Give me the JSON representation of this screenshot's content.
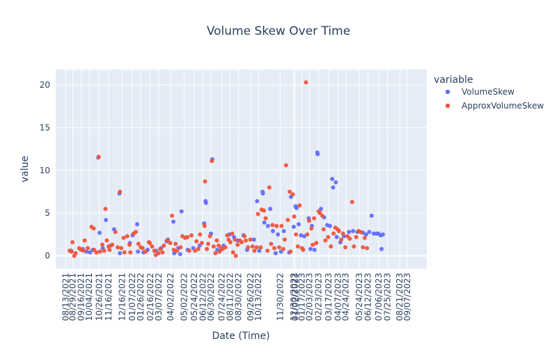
{
  "chart_data": {
    "type": "scatter",
    "title": "Volume Skew Over Time",
    "xlabel": "Date (Time)",
    "ylabel": "value",
    "ylim": [
      -1.5,
      21.8
    ],
    "xlim": [
      "2021-07-22",
      "2023-10-20"
    ],
    "yticks": [
      0,
      5,
      10,
      15,
      20
    ],
    "xticks": [
      "08/13/2021",
      "08/29/2021",
      "09/16/2021",
      "10/04/2021",
      "10/26/2021",
      "11/16/2021",
      "12/16/2021",
      "01/07/2022",
      "01/26/2022",
      "02/16/2022",
      "03/07/2022",
      "04/02/2022",
      "05/02/2022",
      "05/24/2022",
      "06/12/2022",
      "06/30/2022",
      "07/24/2022",
      "08/11/2022",
      "08/30/2022",
      "09/26/2022",
      "10/13/2022",
      "11/30/2022",
      "12/30/2022",
      "01/02/2023",
      "01/17/2023",
      "02/03/2023",
      "02/23/2023",
      "03/17/2023",
      "04/07/2023",
      "04/24/2023",
      "05/24/2023",
      "06/12/2023",
      "07/06/2023",
      "07/25/2023",
      "08/21/2023",
      "09/07/2023"
    ],
    "grid": true,
    "legend": {
      "title": "variable",
      "position": "top-right"
    },
    "series": [
      {
        "name": "VolumeSkew",
        "color": "#636efa",
        "points": [
          [
            "2021-08-25",
            0.6
          ],
          [
            "2021-09-20",
            0.8
          ],
          [
            "2021-09-28",
            0.5
          ],
          [
            "2021-10-06",
            0.4
          ],
          [
            "2021-10-12",
            0.7
          ],
          [
            "2021-10-24",
            11.5
          ],
          [
            "2021-10-27",
            2.7
          ],
          [
            "2021-11-03",
            0.9
          ],
          [
            "2021-11-10",
            4.2
          ],
          [
            "2021-11-20",
            1.2
          ],
          [
            "2021-11-28",
            3.1
          ],
          [
            "2021-12-10",
            7.3
          ],
          [
            "2021-12-11",
            0.3
          ],
          [
            "2022-01-02",
            1.5
          ],
          [
            "2022-01-08",
            2.4
          ],
          [
            "2022-01-18",
            3.7
          ],
          [
            "2022-01-20",
            0.5
          ],
          [
            "2022-02-01",
            0.4
          ],
          [
            "2022-02-10",
            0.7
          ],
          [
            "2022-03-01",
            0.6
          ],
          [
            "2022-03-12",
            0.9
          ],
          [
            "2022-03-24",
            1.7
          ],
          [
            "2022-03-27",
            1.9
          ],
          [
            "2022-04-08",
            4.0
          ],
          [
            "2022-04-10",
            0.3
          ],
          [
            "2022-04-19",
            0.9
          ],
          [
            "2022-04-23",
            0.2
          ],
          [
            "2022-04-26",
            5.2
          ],
          [
            "2022-05-10",
            0.7
          ],
          [
            "2022-05-22",
            0.9
          ],
          [
            "2022-06-05",
            1.2
          ],
          [
            "2022-06-15",
            3.8
          ],
          [
            "2022-06-18",
            6.4
          ],
          [
            "2022-06-19",
            6.2
          ],
          [
            "2022-06-30",
            2.6
          ],
          [
            "2022-07-03",
            11.3
          ],
          [
            "2022-07-14",
            0.7
          ],
          [
            "2022-07-20",
            0.6
          ],
          [
            "2022-07-28",
            1.2
          ],
          [
            "2022-08-10",
            2.5
          ],
          [
            "2022-08-20",
            2.2
          ],
          [
            "2022-08-28",
            1.8
          ],
          [
            "2022-09-10",
            2.4
          ],
          [
            "2022-09-18",
            0.7
          ],
          [
            "2022-10-03",
            1.9
          ],
          [
            "2022-10-10",
            6.4
          ],
          [
            "2022-10-15",
            0.6
          ],
          [
            "2022-10-22",
            7.5
          ],
          [
            "2022-10-23",
            7.3
          ],
          [
            "2022-10-26",
            3.9
          ],
          [
            "2022-11-03",
            3.5
          ],
          [
            "2022-11-08",
            5.5
          ],
          [
            "2022-11-14",
            2.9
          ],
          [
            "2022-11-20",
            0.3
          ],
          [
            "2022-11-25",
            2.5
          ],
          [
            "2022-12-02",
            0.5
          ],
          [
            "2022-12-08",
            2.9
          ],
          [
            "2022-12-20",
            0.4
          ],
          [
            "2022-12-24",
            6.9
          ],
          [
            "2022-12-30",
            3.4
          ],
          [
            "2023-01-03",
            5.8
          ],
          [
            "2023-01-05",
            5.6
          ],
          [
            "2023-01-10",
            3.7
          ],
          [
            "2023-01-15",
            2.4
          ],
          [
            "2023-01-22",
            2.3
          ],
          [
            "2023-02-01",
            4.4
          ],
          [
            "2023-02-05",
            0.8
          ],
          [
            "2023-02-08",
            3.5
          ],
          [
            "2023-02-14",
            0.7
          ],
          [
            "2023-02-20",
            12.1
          ],
          [
            "2023-02-21",
            11.9
          ],
          [
            "2023-02-28",
            5.5
          ],
          [
            "2023-03-07",
            4.5
          ],
          [
            "2023-03-14",
            3.6
          ],
          [
            "2023-03-20",
            3.5
          ],
          [
            "2023-03-25",
            9.0
          ],
          [
            "2023-03-27",
            8.0
          ],
          [
            "2023-04-02",
            8.6
          ],
          [
            "2023-04-04",
            2.2
          ],
          [
            "2023-04-12",
            1.6
          ],
          [
            "2023-04-20",
            2.3
          ],
          [
            "2023-05-01",
            2.8
          ],
          [
            "2023-05-10",
            2.9
          ],
          [
            "2023-05-20",
            2.8
          ],
          [
            "2023-06-01",
            2.7
          ],
          [
            "2023-06-08",
            2.5
          ],
          [
            "2023-06-15",
            2.8
          ],
          [
            "2023-06-20",
            4.7
          ],
          [
            "2023-06-25",
            2.6
          ],
          [
            "2023-07-01",
            2.6
          ],
          [
            "2023-07-05",
            2.6
          ],
          [
            "2023-07-10",
            2.4
          ],
          [
            "2023-07-12",
            0.8
          ],
          [
            "2023-07-15",
            2.5
          ]
        ]
      },
      {
        "name": "ApproxVolumeSkew",
        "color": "#ef553b",
        "points": [
          [
            "2021-08-22",
            0.6
          ],
          [
            "2021-08-26",
            0.5
          ],
          [
            "2021-08-28",
            1.6
          ],
          [
            "2021-09-01",
            0.0
          ],
          [
            "2021-09-04",
            0.3
          ],
          [
            "2021-09-12",
            0.9
          ],
          [
            "2021-09-16",
            0.7
          ],
          [
            "2021-09-22",
            0.6
          ],
          [
            "2021-09-24",
            1.8
          ],
          [
            "2021-10-01",
            0.9
          ],
          [
            "2021-10-09",
            3.4
          ],
          [
            "2021-10-14",
            3.2
          ],
          [
            "2021-10-15",
            0.7
          ],
          [
            "2021-10-20",
            0.4
          ],
          [
            "2021-10-25",
            11.6
          ],
          [
            "2021-10-28",
            0.5
          ],
          [
            "2021-11-02",
            1.3
          ],
          [
            "2021-11-06",
            0.6
          ],
          [
            "2021-11-09",
            5.5
          ],
          [
            "2021-11-12",
            1.8
          ],
          [
            "2021-11-16",
            1.1
          ],
          [
            "2021-11-18",
            0.7
          ],
          [
            "2021-11-24",
            1.3
          ],
          [
            "2021-12-01",
            2.8
          ],
          [
            "2021-12-06",
            1.0
          ],
          [
            "2021-12-11",
            7.5
          ],
          [
            "2021-12-14",
            0.9
          ],
          [
            "2021-12-19",
            2.1
          ],
          [
            "2021-12-21",
            0.4
          ],
          [
            "2021-12-27",
            2.3
          ],
          [
            "2022-01-01",
            1.3
          ],
          [
            "2022-01-03",
            0.4
          ],
          [
            "2022-01-10",
            2.6
          ],
          [
            "2022-01-15",
            2.8
          ],
          [
            "2022-01-21",
            1.4
          ],
          [
            "2022-01-26",
            1.0
          ],
          [
            "2022-01-30",
            0.9
          ],
          [
            "2022-02-06",
            0.5
          ],
          [
            "2022-02-13",
            1.6
          ],
          [
            "2022-02-15",
            1.5
          ],
          [
            "2022-02-20",
            1.1
          ],
          [
            "2022-02-25",
            0.6
          ],
          [
            "2022-02-28",
            0.1
          ],
          [
            "2022-03-06",
            0.3
          ],
          [
            "2022-03-10",
            0.8
          ],
          [
            "2022-03-15",
            0.4
          ],
          [
            "2022-03-18",
            1.2
          ],
          [
            "2022-03-25",
            1.8
          ],
          [
            "2022-04-01",
            1.5
          ],
          [
            "2022-04-05",
            4.7
          ],
          [
            "2022-04-09",
            0.7
          ],
          [
            "2022-04-13",
            1.4
          ],
          [
            "2022-04-16",
            0.6
          ],
          [
            "2022-04-24",
            1.0
          ],
          [
            "2022-04-28",
            2.3
          ],
          [
            "2022-05-04",
            2.1
          ],
          [
            "2022-05-09",
            2.2
          ],
          [
            "2022-05-13",
            0.6
          ],
          [
            "2022-05-18",
            2.4
          ],
          [
            "2022-05-26",
            0.6
          ],
          [
            "2022-05-29",
            1.7
          ],
          [
            "2022-06-02",
            0.8
          ],
          [
            "2022-06-06",
            2.5
          ],
          [
            "2022-06-10",
            1.5
          ],
          [
            "2022-06-16",
            3.5
          ],
          [
            "2022-06-17",
            8.7
          ],
          [
            "2022-06-21",
            0.8
          ],
          [
            "2022-06-24",
            1.4
          ],
          [
            "2022-06-28",
            2.3
          ],
          [
            "2022-07-02",
            11.1
          ],
          [
            "2022-07-06",
            1.1
          ],
          [
            "2022-07-10",
            0.3
          ],
          [
            "2022-07-13",
            1.8
          ],
          [
            "2022-07-17",
            1.2
          ],
          [
            "2022-07-19",
            0.5
          ],
          [
            "2022-07-23",
            0.9
          ],
          [
            "2022-07-26",
            0.8
          ],
          [
            "2022-08-01",
            1.0
          ],
          [
            "2022-08-05",
            2.4
          ],
          [
            "2022-08-08",
            1.9
          ],
          [
            "2022-08-12",
            1.6
          ],
          [
            "2022-08-16",
            2.6
          ],
          [
            "2022-08-18",
            0.4
          ],
          [
            "2022-08-22",
            1.9
          ],
          [
            "2022-08-24",
            0.0
          ],
          [
            "2022-08-28",
            1.3
          ],
          [
            "2022-09-02",
            1.8
          ],
          [
            "2022-09-06",
            1.6
          ],
          [
            "2022-09-12",
            2.3
          ],
          [
            "2022-09-15",
            1.8
          ],
          [
            "2022-09-20",
            1.0
          ],
          [
            "2022-09-25",
            1.9
          ],
          [
            "2022-09-30",
            1.1
          ],
          [
            "2022-10-04",
            0.6
          ],
          [
            "2022-10-09",
            1.0
          ],
          [
            "2022-10-12",
            4.9
          ],
          [
            "2022-10-18",
            1.0
          ],
          [
            "2022-10-20",
            5.4
          ],
          [
            "2022-10-25",
            5.3
          ],
          [
            "2022-10-29",
            4.4
          ],
          [
            "2022-11-02",
            0.6
          ],
          [
            "2022-11-06",
            8.0
          ],
          [
            "2022-11-10",
            1.4
          ],
          [
            "2022-11-13",
            3.6
          ],
          [
            "2022-11-17",
            0.9
          ],
          [
            "2022-11-22",
            3.5
          ],
          [
            "2022-11-28",
            1.0
          ],
          [
            "2022-12-03",
            3.5
          ],
          [
            "2022-12-07",
            0.8
          ],
          [
            "2022-12-10",
            1.9
          ],
          [
            "2022-12-13",
            10.6
          ],
          [
            "2022-12-17",
            4.2
          ],
          [
            "2022-12-21",
            7.5
          ],
          [
            "2022-12-23",
            0.5
          ],
          [
            "2022-12-28",
            7.2
          ],
          [
            "2022-12-31",
            4.6
          ],
          [
            "2023-01-04",
            2.5
          ],
          [
            "2023-01-08",
            1.1
          ],
          [
            "2023-01-12",
            5.9
          ],
          [
            "2023-01-17",
            0.9
          ],
          [
            "2023-01-20",
            0.7
          ],
          [
            "2023-01-26",
            20.3
          ],
          [
            "2023-01-29",
            2.5
          ],
          [
            "2023-02-02",
            4.1
          ],
          [
            "2023-02-07",
            3.2
          ],
          [
            "2023-02-10",
            1.3
          ],
          [
            "2023-02-13",
            4.4
          ],
          [
            "2023-02-18",
            1.5
          ],
          [
            "2023-02-23",
            5.2
          ],
          [
            "2023-02-26",
            5.0
          ],
          [
            "2023-03-03",
            4.7
          ],
          [
            "2023-03-06",
            3.1
          ],
          [
            "2023-03-10",
            1.8
          ],
          [
            "2023-03-16",
            2.2
          ],
          [
            "2023-03-22",
            1.1
          ],
          [
            "2023-03-28",
            2.6
          ],
          [
            "2023-04-01",
            3.3
          ],
          [
            "2023-04-06",
            3.1
          ],
          [
            "2023-04-09",
            2.9
          ],
          [
            "2023-04-14",
            1.9
          ],
          [
            "2023-04-18",
            2.6
          ],
          [
            "2023-04-23",
            1.0
          ],
          [
            "2023-04-28",
            2.3
          ],
          [
            "2023-05-03",
            2.0
          ],
          [
            "2023-05-08",
            6.3
          ],
          [
            "2023-05-12",
            1.1
          ],
          [
            "2023-05-17",
            2.2
          ],
          [
            "2023-05-22",
            2.9
          ],
          [
            "2023-05-27",
            2.8
          ],
          [
            "2023-06-01",
            1.0
          ],
          [
            "2023-06-05",
            2.1
          ],
          [
            "2023-06-10",
            0.9
          ]
        ]
      }
    ]
  }
}
